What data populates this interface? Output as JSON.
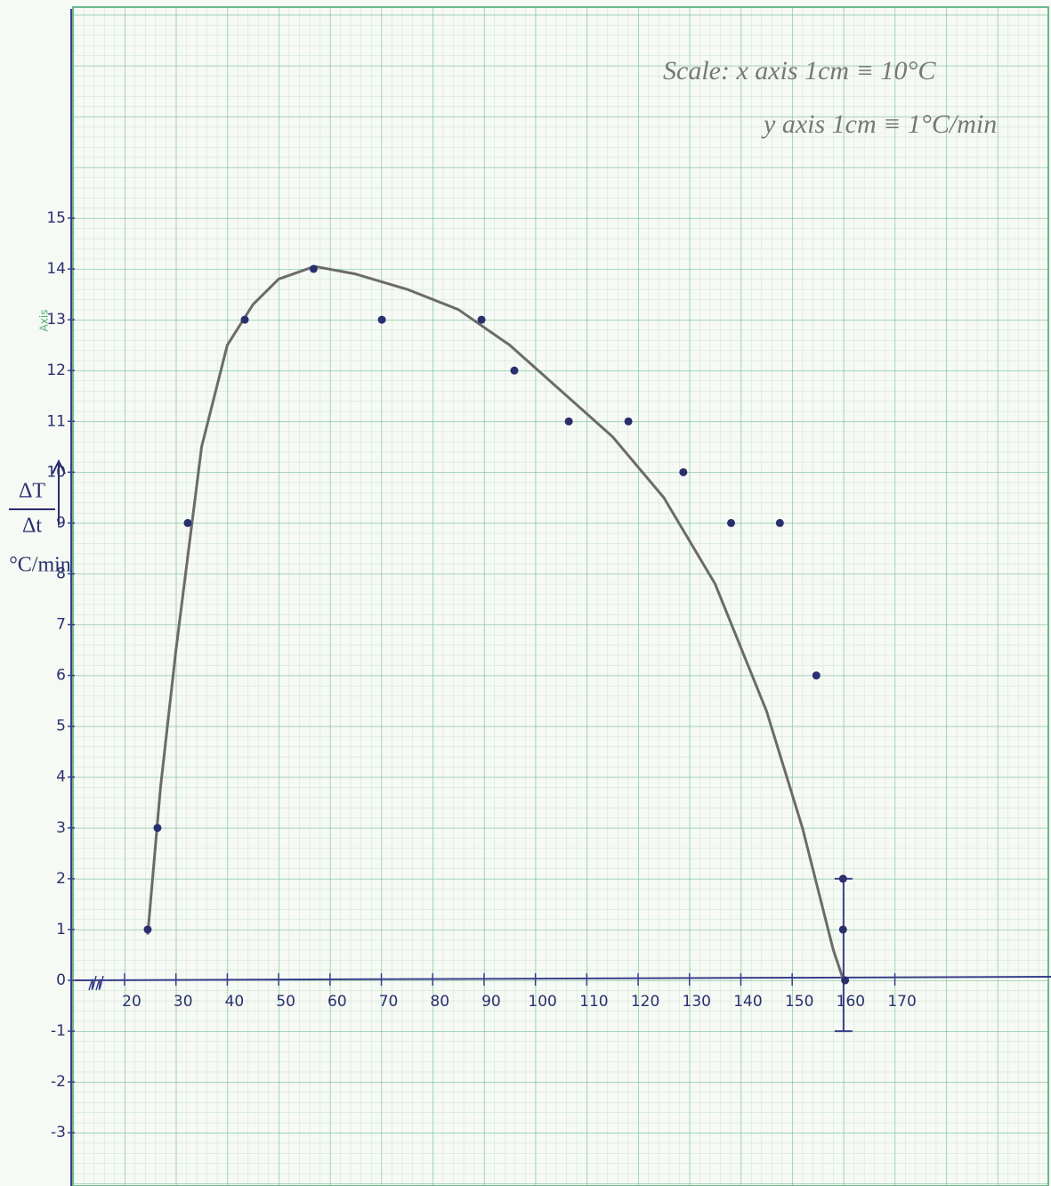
{
  "chart_data": {
    "type": "scatter",
    "annotation_line1": "Scale: x axis 1cm ≡ 10°C",
    "annotation_line2": "y axis 1cm ≡ 1°C/min",
    "ylabel_top": "ΔT",
    "ylabel_bottom": "Δt",
    "ylabel_unit": "°C/min",
    "paper_label": "Axis",
    "xlim": [
      10,
      200
    ],
    "ylim": [
      -4,
      19
    ],
    "xticks": [
      20,
      30,
      40,
      50,
      60,
      70,
      80,
      90,
      100,
      110,
      120,
      130,
      140,
      150,
      160,
      170
    ],
    "yticks": [
      -3,
      -2,
      -1,
      0,
      1,
      2,
      3,
      4,
      5,
      6,
      7,
      8,
      9,
      10,
      11,
      12,
      13,
      14,
      15
    ],
    "grid": true,
    "points": {
      "color": "#2a2f6e",
      "x": [
        24.5,
        26.4,
        32.3,
        43.4,
        56.8,
        70.1,
        89.5,
        95.9,
        106.5,
        118.1,
        128.8,
        138.1,
        147.6,
        154.7,
        159.9,
        159.9,
        160.3
      ],
      "y": [
        1,
        3,
        9,
        13,
        14,
        13,
        13,
        12,
        11,
        11,
        10,
        9,
        9,
        6,
        2,
        1,
        0
      ]
    },
    "curve": {
      "color": "#6b6b6b",
      "x": [
        24.5,
        27,
        30,
        35,
        40,
        45,
        50,
        57,
        65,
        75,
        85,
        95,
        105,
        115,
        125,
        135,
        145,
        152,
        158,
        160
      ],
      "y": [
        0.9,
        3.8,
        6.5,
        10.5,
        12.5,
        13.3,
        13.8,
        14.05,
        13.9,
        13.6,
        13.2,
        12.5,
        11.6,
        10.7,
        9.5,
        7.8,
        5.3,
        3,
        0.6,
        0
      ]
    },
    "error_bar": {
      "x": 160,
      "low": -1,
      "high": 2
    }
  }
}
